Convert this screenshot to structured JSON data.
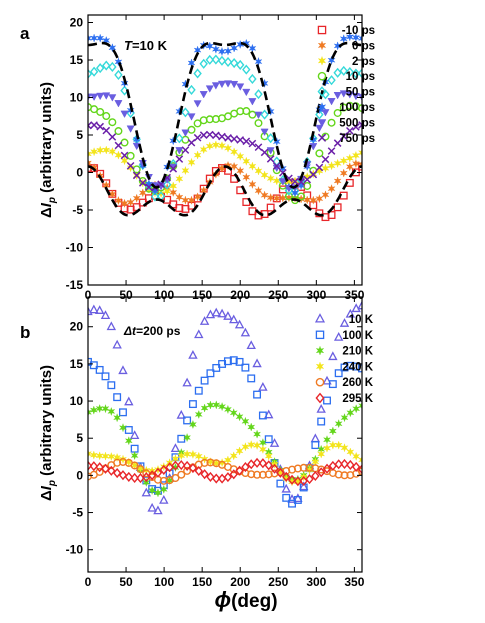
{
  "xlabel_symbol": "ϕ",
  "xlabel_unit": "(deg)",
  "chart_data": [
    {
      "type": "scatter",
      "panel_label": "a",
      "annotation_var": "T",
      "annotation_val": "=10 K",
      "ylabel_delta": "Δ",
      "ylabel_sym": "I",
      "ylabel_sub": "p",
      "ylabel_unit": " (arbitrary units)",
      "xlim": [
        0,
        360
      ],
      "ylim": [
        -15,
        21
      ],
      "xticks": [
        0,
        50,
        100,
        150,
        200,
        250,
        300,
        350
      ],
      "yticks": [
        -15,
        -10,
        -5,
        0,
        5,
        10,
        15,
        20
      ],
      "legend_position": "top-right",
      "series": [
        {
          "name": "-10 ps",
          "color": "#e8262a",
          "marker": "square",
          "A": 0.6,
          "B": -2.2,
          "C": -4.4
        },
        {
          "name": "0 ps",
          "color": "#ef7a23",
          "marker": "star",
          "A": 1.0,
          "B": -2.5,
          "C": -2.5
        },
        {
          "name": "2 ps",
          "color": "#f3e41b",
          "marker": "star",
          "A": 3.0,
          "B": -2.0,
          "C": 0.5
        },
        {
          "name": "10 ps",
          "color": "#63d61a",
          "marker": "circle",
          "A": 8.0,
          "B": -3.0,
          "C": 3.0
        },
        {
          "name": "50 ps",
          "color": "#35d9d9",
          "marker": "diamond",
          "A": 14.0,
          "B": -3.0,
          "C": 5.5
        },
        {
          "name": "100 ps",
          "color": "#2c6ef0",
          "marker": "star",
          "A": 17.0,
          "B": -2.5,
          "C": 6.5
        },
        {
          "name": "500 ps",
          "color": "#6a5ee0",
          "marker": "triangle-down",
          "A": 11.0,
          "B": -2.0,
          "C": 3.5
        },
        {
          "name": "750 ps",
          "color": "#6a1fa8",
          "marker": "cross",
          "A": 5.5,
          "B": -1.5,
          "C": 1.0
        }
      ],
      "fits": [
        {
          "name": "fit-high",
          "A": 17.0,
          "B": -2.0,
          "C": 6.0
        },
        {
          "name": "fit-low",
          "A": 0.8,
          "B": -3.6,
          "C": -4.0
        }
      ]
    },
    {
      "type": "scatter",
      "panel_label": "b",
      "annotation_var": "Δt",
      "annotation_val": "=200 ps",
      "ylabel_delta": "Δ",
      "ylabel_sym": "I",
      "ylabel_sub": "p",
      "ylabel_unit": " (arbitrary units)",
      "xlim": [
        0,
        360
      ],
      "ylim": [
        -13,
        24
      ],
      "xticks": [
        0,
        50,
        100,
        150,
        200,
        250,
        300,
        350
      ],
      "yticks": [
        -10,
        -5,
        0,
        5,
        10,
        15,
        20
      ],
      "legend_position": "top-right",
      "series": [
        {
          "name": "10 K",
          "color": "#6a5ee0",
          "marker": "triangle",
          "A": 22.0,
          "B": -4.0,
          "C": 5.0
        },
        {
          "name": "100 K",
          "color": "#2c6ef0",
          "marker": "square",
          "A": 15.0,
          "B": -3.0,
          "C": 3.5
        },
        {
          "name": "210 K",
          "color": "#63d61a",
          "marker": "star",
          "A": 9.0,
          "B": -1.5,
          "C": 2.0
        },
        {
          "name": "240 K",
          "color": "#f3e41b",
          "marker": "star",
          "A": 2.2,
          "B": 0.0,
          "C": 2.0
        },
        {
          "name": "260 K",
          "color": "#ef7a23",
          "marker": "circle",
          "A": 0.7,
          "B": 0.0,
          "C": 0.6
        },
        {
          "name": "295 K",
          "color": "#e8262a",
          "marker": "diamond",
          "A": 0.4,
          "B": 0.0,
          "C": 0.6
        }
      ]
    }
  ]
}
